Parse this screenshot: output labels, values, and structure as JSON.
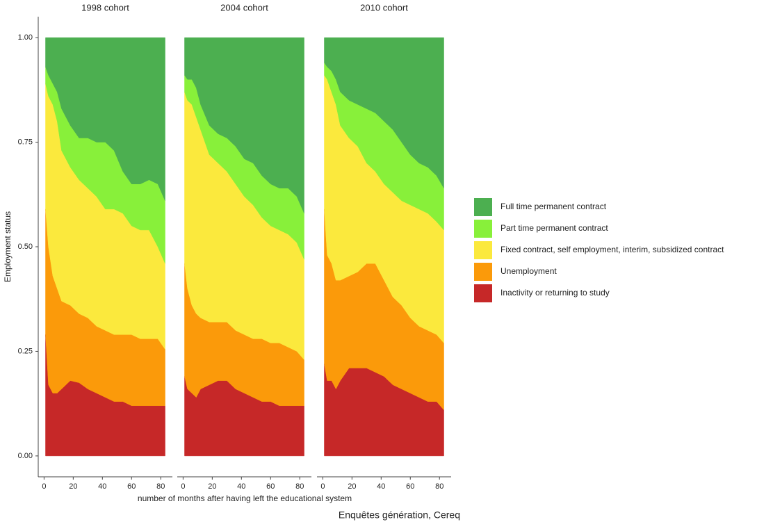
{
  "chart_data": {
    "type": "area",
    "stacked": true,
    "ylabel": "Employment status",
    "xlabel": "number of months after having left the educational system",
    "caption": "Enquêtes génération, Cereq",
    "ylim": [
      -0.05,
      1.05
    ],
    "yticks": [
      {
        "value": 0,
        "label": "0.00"
      },
      {
        "value": 0.25,
        "label": "0.25"
      },
      {
        "value": 0.5,
        "label": "0.50"
      },
      {
        "value": 0.75,
        "label": "0.75"
      },
      {
        "value": 1,
        "label": "1.00"
      }
    ],
    "xlim": [
      -4,
      88
    ],
    "xticks": [
      0,
      20,
      40,
      60,
      80
    ],
    "legend": "right",
    "x": [
      1,
      3,
      6,
      9,
      12,
      18,
      24,
      30,
      36,
      42,
      48,
      54,
      60,
      66,
      72,
      78,
      83
    ],
    "series": [
      {
        "name": "Inactivity or returning to study",
        "color": "#c62828"
      },
      {
        "name": "Unemployment",
        "color": "#fb9a0a"
      },
      {
        "name": "Fixed contract, self employment, interim, subsidized contract",
        "color": "#fbe93d"
      },
      {
        "name": "Part time permanent contract",
        "color": "#88f03a"
      },
      {
        "name": "Full time permanent contract",
        "color": "#4caf50"
      }
    ],
    "facets": [
      {
        "title": "1998 cohort",
        "series": [
          {
            "values": [
              0.29,
              0.17,
              0.15,
              0.15,
              0.16,
              0.18,
              0.175,
              0.16,
              0.15,
              0.14,
              0.13,
              0.13,
              0.12,
              0.12,
              0.12,
              0.12,
              0.12
            ]
          },
          {
            "values": [
              0.3,
              0.33,
              0.28,
              0.25,
              0.21,
              0.18,
              0.165,
              0.17,
              0.16,
              0.16,
              0.16,
              0.16,
              0.17,
              0.16,
              0.16,
              0.16,
              0.135
            ]
          },
          {
            "values": [
              0.3,
              0.36,
              0.41,
              0.4,
              0.36,
              0.33,
              0.32,
              0.31,
              0.31,
              0.29,
              0.3,
              0.29,
              0.26,
              0.26,
              0.26,
              0.22,
              0.205
            ]
          },
          {
            "values": [
              0.04,
              0.05,
              0.05,
              0.07,
              0.1,
              0.1,
              0.1,
              0.12,
              0.13,
              0.16,
              0.14,
              0.1,
              0.1,
              0.11,
              0.12,
              0.15,
              0.15
            ]
          },
          {
            "values": [
              0.07,
              0.09,
              0.11,
              0.13,
              0.17,
              0.21,
              0.24,
              0.24,
              0.25,
              0.25,
              0.27,
              0.32,
              0.35,
              0.35,
              0.34,
              0.35,
              0.39
            ]
          }
        ]
      },
      {
        "title": "2004 cohort",
        "series": [
          {
            "values": [
              0.19,
              0.16,
              0.15,
              0.14,
              0.16,
              0.17,
              0.18,
              0.18,
              0.16,
              0.15,
              0.14,
              0.13,
              0.13,
              0.12,
              0.12,
              0.12,
              0.12
            ]
          },
          {
            "values": [
              0.27,
              0.24,
              0.21,
              0.2,
              0.17,
              0.15,
              0.14,
              0.14,
              0.14,
              0.14,
              0.14,
              0.15,
              0.14,
              0.15,
              0.14,
              0.13,
              0.11
            ]
          },
          {
            "values": [
              0.41,
              0.45,
              0.48,
              0.47,
              0.45,
              0.4,
              0.38,
              0.36,
              0.35,
              0.33,
              0.32,
              0.29,
              0.28,
              0.27,
              0.27,
              0.26,
              0.24
            ]
          },
          {
            "values": [
              0.04,
              0.05,
              0.06,
              0.07,
              0.06,
              0.07,
              0.07,
              0.08,
              0.09,
              0.09,
              0.1,
              0.1,
              0.1,
              0.1,
              0.11,
              0.11,
              0.11
            ]
          },
          {
            "values": [
              0.09,
              0.1,
              0.1,
              0.12,
              0.16,
              0.21,
              0.23,
              0.24,
              0.26,
              0.29,
              0.3,
              0.33,
              0.35,
              0.36,
              0.36,
              0.38,
              0.42
            ]
          }
        ]
      },
      {
        "title": "2010 cohort",
        "series": [
          {
            "values": [
              0.22,
              0.18,
              0.18,
              0.16,
              0.18,
              0.21,
              0.21,
              0.21,
              0.2,
              0.19,
              0.17,
              0.16,
              0.15,
              0.14,
              0.13,
              0.13,
              0.11
            ]
          },
          {
            "values": [
              0.37,
              0.3,
              0.28,
              0.26,
              0.24,
              0.22,
              0.23,
              0.25,
              0.26,
              0.23,
              0.21,
              0.2,
              0.18,
              0.17,
              0.17,
              0.16,
              0.16
            ]
          },
          {
            "values": [
              0.32,
              0.42,
              0.41,
              0.42,
              0.37,
              0.33,
              0.3,
              0.24,
              0.22,
              0.23,
              0.25,
              0.25,
              0.27,
              0.28,
              0.28,
              0.27,
              0.27
            ]
          },
          {
            "values": [
              0.03,
              0.03,
              0.05,
              0.06,
              0.08,
              0.09,
              0.1,
              0.13,
              0.14,
              0.15,
              0.15,
              0.14,
              0.12,
              0.11,
              0.11,
              0.11,
              0.1
            ]
          },
          {
            "values": [
              0.06,
              0.07,
              0.08,
              0.1,
              0.13,
              0.15,
              0.16,
              0.17,
              0.18,
              0.2,
              0.22,
              0.25,
              0.28,
              0.3,
              0.31,
              0.33,
              0.36
            ]
          }
        ]
      }
    ]
  }
}
